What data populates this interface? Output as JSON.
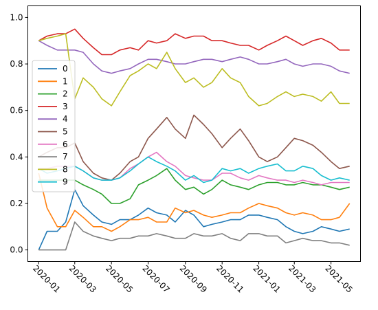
{
  "chart_data": {
    "type": "line",
    "title": "",
    "xlabel": "",
    "ylabel": "",
    "xlim": [
      "2019-12-14",
      "2021-06-19"
    ],
    "ylim": [
      -0.05,
      1.05
    ],
    "grid": false,
    "legend_position": "left",
    "x_ticks": [
      "2020-01",
      "2020-03",
      "2020-05",
      "2020-07",
      "2020-09",
      "2020-11",
      "2021-01",
      "2021-03",
      "2021-05"
    ],
    "y_ticks": [
      "0.0",
      "0.2",
      "0.4",
      "0.6",
      "0.8",
      "1.0"
    ],
    "x": [
      "2020-01-01",
      "2020-01-15",
      "2020-02-01",
      "2020-02-15",
      "2020-03-01",
      "2020-03-15",
      "2020-04-01",
      "2020-04-15",
      "2020-05-01",
      "2020-05-15",
      "2020-06-01",
      "2020-06-15",
      "2020-07-01",
      "2020-07-15",
      "2020-08-01",
      "2020-08-15",
      "2020-09-01",
      "2020-09-15",
      "2020-10-01",
      "2020-10-15",
      "2020-11-01",
      "2020-11-15",
      "2020-12-01",
      "2020-12-15",
      "2021-01-01",
      "2021-01-15",
      "2021-02-01",
      "2021-02-15",
      "2021-03-01",
      "2021-03-15",
      "2021-04-01",
      "2021-04-15",
      "2021-05-01",
      "2021-05-15",
      "2021-06-01"
    ],
    "series": [
      {
        "name": "0",
        "color": "#1f77b4",
        "values": [
          0.0,
          0.08,
          0.08,
          0.12,
          0.26,
          0.19,
          0.15,
          0.12,
          0.11,
          0.13,
          0.13,
          0.15,
          0.18,
          0.16,
          0.15,
          0.12,
          0.17,
          0.15,
          0.1,
          0.11,
          0.12,
          0.13,
          0.13,
          0.15,
          0.15,
          0.14,
          0.13,
          0.1,
          0.08,
          0.07,
          0.08,
          0.1,
          0.09,
          0.08,
          0.09
        ]
      },
      {
        "name": "1",
        "color": "#ff7f0e",
        "values": [
          0.33,
          0.18,
          0.1,
          0.1,
          0.17,
          0.14,
          0.1,
          0.1,
          0.08,
          0.1,
          0.13,
          0.13,
          0.14,
          0.12,
          0.12,
          0.18,
          0.16,
          0.17,
          0.15,
          0.14,
          0.15,
          0.16,
          0.16,
          0.18,
          0.2,
          0.19,
          0.18,
          0.16,
          0.15,
          0.16,
          0.15,
          0.13,
          0.13,
          0.14,
          0.2
        ]
      },
      {
        "name": "2",
        "color": "#2ca02c",
        "values": [
          0.3,
          0.3,
          0.3,
          0.3,
          0.3,
          0.28,
          0.26,
          0.24,
          0.2,
          0.2,
          0.22,
          0.28,
          0.3,
          0.32,
          0.35,
          0.3,
          0.26,
          0.27,
          0.24,
          0.26,
          0.3,
          0.28,
          0.27,
          0.26,
          0.28,
          0.29,
          0.29,
          0.28,
          0.28,
          0.29,
          0.28,
          0.28,
          0.27,
          0.26,
          0.27
        ]
      },
      {
        "name": "3",
        "color": "#d62728",
        "values": [
          0.9,
          0.92,
          0.93,
          0.93,
          0.95,
          0.91,
          0.87,
          0.84,
          0.84,
          0.86,
          0.87,
          0.86,
          0.9,
          0.89,
          0.9,
          0.93,
          0.91,
          0.92,
          0.92,
          0.9,
          0.9,
          0.89,
          0.88,
          0.88,
          0.86,
          0.88,
          0.9,
          0.92,
          0.9,
          0.88,
          0.9,
          0.91,
          0.89,
          0.86,
          0.86
        ]
      },
      {
        "name": "4",
        "color": "#9467bd",
        "values": [
          0.9,
          0.88,
          0.86,
          0.86,
          0.86,
          0.85,
          0.8,
          0.77,
          0.76,
          0.77,
          0.78,
          0.8,
          0.82,
          0.82,
          0.81,
          0.8,
          0.8,
          0.81,
          0.82,
          0.82,
          0.81,
          0.82,
          0.83,
          0.82,
          0.8,
          0.8,
          0.81,
          0.82,
          0.8,
          0.79,
          0.8,
          0.8,
          0.79,
          0.77,
          0.76
        ]
      },
      {
        "name": "5",
        "color": "#8c564b",
        "values": [
          0.4,
          0.42,
          0.44,
          0.44,
          0.46,
          0.38,
          0.33,
          0.31,
          0.3,
          0.33,
          0.38,
          0.4,
          0.48,
          0.52,
          0.57,
          0.52,
          0.48,
          0.58,
          0.54,
          0.5,
          0.44,
          0.48,
          0.52,
          0.47,
          0.4,
          0.38,
          0.4,
          0.44,
          0.48,
          0.47,
          0.45,
          0.42,
          0.38,
          0.35,
          0.36
        ]
      },
      {
        "name": "6",
        "color": "#e377c2",
        "values": [
          0.35,
          0.35,
          0.36,
          0.36,
          0.36,
          0.34,
          0.31,
          0.3,
          0.3,
          0.31,
          0.35,
          0.37,
          0.4,
          0.42,
          0.38,
          0.36,
          0.32,
          0.31,
          0.3,
          0.3,
          0.33,
          0.33,
          0.31,
          0.3,
          0.32,
          0.31,
          0.3,
          0.3,
          0.29,
          0.3,
          0.29,
          0.28,
          0.29,
          0.29,
          0.29
        ]
      },
      {
        "name": "7",
        "color": "#7f7f7f",
        "values": [
          0.0,
          0.0,
          0.0,
          0.0,
          0.12,
          0.08,
          0.06,
          0.05,
          0.04,
          0.05,
          0.05,
          0.06,
          0.06,
          0.07,
          0.06,
          0.05,
          0.05,
          0.07,
          0.06,
          0.06,
          0.07,
          0.05,
          0.04,
          0.07,
          0.07,
          0.06,
          0.06,
          0.03,
          0.04,
          0.05,
          0.04,
          0.04,
          0.03,
          0.03,
          0.02
        ]
      },
      {
        "name": "8",
        "color": "#bcbd22",
        "values": [
          0.9,
          0.91,
          0.92,
          0.93,
          0.65,
          0.74,
          0.7,
          0.65,
          0.62,
          0.68,
          0.75,
          0.77,
          0.8,
          0.78,
          0.85,
          0.78,
          0.72,
          0.74,
          0.7,
          0.72,
          0.78,
          0.74,
          0.72,
          0.66,
          0.62,
          0.63,
          0.66,
          0.68,
          0.66,
          0.67,
          0.66,
          0.64,
          0.68,
          0.63,
          0.63
        ]
      },
      {
        "name": "9",
        "color": "#17becf",
        "values": [
          0.35,
          0.33,
          0.34,
          0.35,
          0.36,
          0.34,
          0.31,
          0.3,
          0.3,
          0.31,
          0.34,
          0.37,
          0.4,
          0.38,
          0.36,
          0.34,
          0.3,
          0.32,
          0.29,
          0.3,
          0.35,
          0.34,
          0.35,
          0.33,
          0.35,
          0.36,
          0.37,
          0.34,
          0.34,
          0.36,
          0.35,
          0.32,
          0.3,
          0.31,
          0.3
        ]
      }
    ]
  }
}
